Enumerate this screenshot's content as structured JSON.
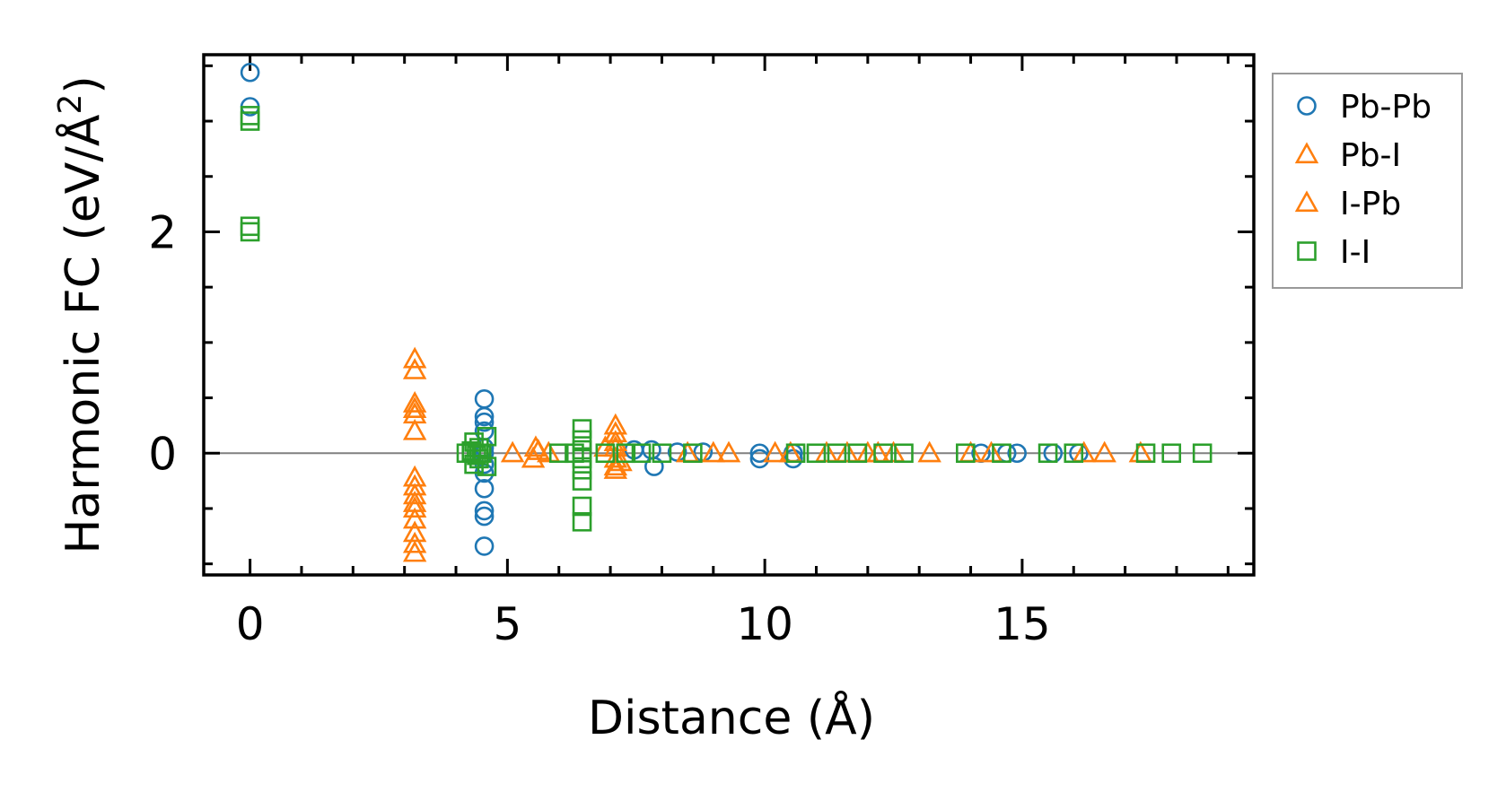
{
  "chart_data": {
    "type": "scatter",
    "title": "",
    "xlabel": "Distance (Å)",
    "ylabel": "Harmonic FC (eV/Å²)",
    "ylabel_parts": {
      "before": "Harmonic FC (eV/Å",
      "sup": "2",
      "after": ")"
    },
    "xlim": [
      -0.9,
      19.5
    ],
    "ylim": [
      -1.1,
      3.6
    ],
    "xticks": [
      0,
      5,
      10,
      15
    ],
    "yticks": [
      0,
      2
    ],
    "xtick_labels": [
      "0",
      "5",
      "10",
      "15"
    ],
    "ytick_labels": [
      "0",
      "2"
    ],
    "x_minor_step": 1,
    "y_minor_step": 0.5,
    "zero_line": true,
    "grid": false,
    "legend_position": "outside-right-top",
    "series": [
      {
        "name": "Pb-Pb",
        "marker": "circle",
        "color": "#1f77b4",
        "points": [
          [
            0,
            3.44
          ],
          [
            0,
            3.13
          ],
          [
            4.55,
            0.49
          ],
          [
            4.55,
            0.33
          ],
          [
            4.55,
            0.28
          ],
          [
            4.55,
            0.2
          ],
          [
            4.55,
            0.05
          ],
          [
            4.55,
            0.0
          ],
          [
            4.55,
            -0.1
          ],
          [
            4.55,
            -0.18
          ],
          [
            4.55,
            -0.32
          ],
          [
            4.55,
            -0.52
          ],
          [
            4.55,
            -0.57
          ],
          [
            4.55,
            -0.84
          ],
          [
            7.46,
            0.03
          ],
          [
            7.8,
            0.03
          ],
          [
            7.85,
            -0.12
          ],
          [
            8.3,
            0.01
          ],
          [
            8.8,
            0.01
          ],
          [
            9.9,
            0.0
          ],
          [
            9.9,
            -0.05
          ],
          [
            10.55,
            -0.05
          ],
          [
            10.55,
            0.0
          ],
          [
            14.2,
            0.0
          ],
          [
            14.7,
            0.0
          ],
          [
            14.9,
            0.0
          ],
          [
            15.6,
            0.0
          ],
          [
            16.1,
            0.0
          ]
        ]
      },
      {
        "name": "Pb-I",
        "marker": "triangle",
        "color": "#ff7f0e",
        "points": [
          [
            3.2,
            0.85
          ],
          [
            3.2,
            0.75
          ],
          [
            3.2,
            0.45
          ],
          [
            3.2,
            0.4
          ],
          [
            3.2,
            0.35
          ],
          [
            3.2,
            0.2
          ],
          [
            3.2,
            -0.22
          ],
          [
            3.2,
            -0.3
          ],
          [
            3.2,
            -0.38
          ],
          [
            3.2,
            -0.45
          ],
          [
            3.2,
            -0.5
          ],
          [
            3.2,
            -0.6
          ],
          [
            3.2,
            -0.72
          ],
          [
            3.2,
            -0.82
          ],
          [
            3.2,
            -0.9
          ],
          [
            5.1,
            0.0
          ],
          [
            5.5,
            -0.05
          ],
          [
            5.55,
            0.05
          ],
          [
            5.6,
            0.02
          ],
          [
            5.8,
            0.0
          ],
          [
            7.1,
            0.25
          ],
          [
            7.1,
            0.18
          ],
          [
            7.1,
            0.1
          ],
          [
            7.1,
            0.05
          ],
          [
            7.1,
            -0.05
          ],
          [
            7.1,
            -0.12
          ],
          [
            7.1,
            -0.15
          ],
          [
            8.5,
            0.0
          ],
          [
            9.0,
            0.0
          ],
          [
            9.3,
            0.0
          ],
          [
            10.2,
            0.0
          ],
          [
            10.5,
            0.0
          ],
          [
            11.2,
            0.0
          ],
          [
            12.0,
            0.0
          ],
          [
            12.5,
            0.0
          ],
          [
            13.2,
            0.0
          ],
          [
            14.0,
            0.0
          ],
          [
            14.4,
            0.0
          ],
          [
            16.2,
            0.0
          ],
          [
            16.6,
            0.0
          ],
          [
            17.3,
            0.0
          ]
        ]
      },
      {
        "name": "I-Pb",
        "marker": "triangle",
        "color": "#ff7f0e",
        "points": [
          [
            6.9,
            0.05
          ],
          [
            7.2,
            -0.08
          ],
          [
            11.6,
            0.0
          ],
          [
            12.2,
            0.0
          ]
        ]
      },
      {
        "name": "I-I",
        "marker": "square",
        "color": "#2ca02c",
        "points": [
          [
            0,
            3.05
          ],
          [
            0,
            3.0
          ],
          [
            0,
            2.05
          ],
          [
            0,
            2.0
          ],
          [
            4.2,
            0.0
          ],
          [
            4.35,
            0.1
          ],
          [
            4.35,
            -0.1
          ],
          [
            4.45,
            0.05
          ],
          [
            4.45,
            -0.05
          ],
          [
            4.6,
            0.15
          ],
          [
            4.6,
            -0.12
          ],
          [
            4.3,
            0.02
          ],
          [
            4.4,
            -0.02
          ],
          [
            4.5,
            0.0
          ],
          [
            6.0,
            0.0
          ],
          [
            6.3,
            0.0
          ],
          [
            6.45,
            0.22
          ],
          [
            6.45,
            0.12
          ],
          [
            6.45,
            0.03
          ],
          [
            6.45,
            -0.05
          ],
          [
            6.45,
            -0.15
          ],
          [
            6.45,
            -0.25
          ],
          [
            6.45,
            -0.48
          ],
          [
            6.45,
            -0.62
          ],
          [
            6.9,
            0.0
          ],
          [
            7.3,
            0.0
          ],
          [
            7.6,
            0.0
          ],
          [
            8.0,
            0.0
          ],
          [
            8.6,
            0.0
          ],
          [
            10.6,
            0.0
          ],
          [
            11.0,
            0.0
          ],
          [
            11.4,
            0.0
          ],
          [
            11.8,
            0.0
          ],
          [
            12.3,
            0.0
          ],
          [
            12.7,
            0.0
          ],
          [
            13.9,
            0.0
          ],
          [
            14.6,
            0.0
          ],
          [
            15.5,
            0.0
          ],
          [
            16.0,
            0.0
          ],
          [
            17.4,
            0.0
          ],
          [
            17.9,
            0.0
          ],
          [
            18.5,
            0.0
          ]
        ]
      }
    ]
  }
}
